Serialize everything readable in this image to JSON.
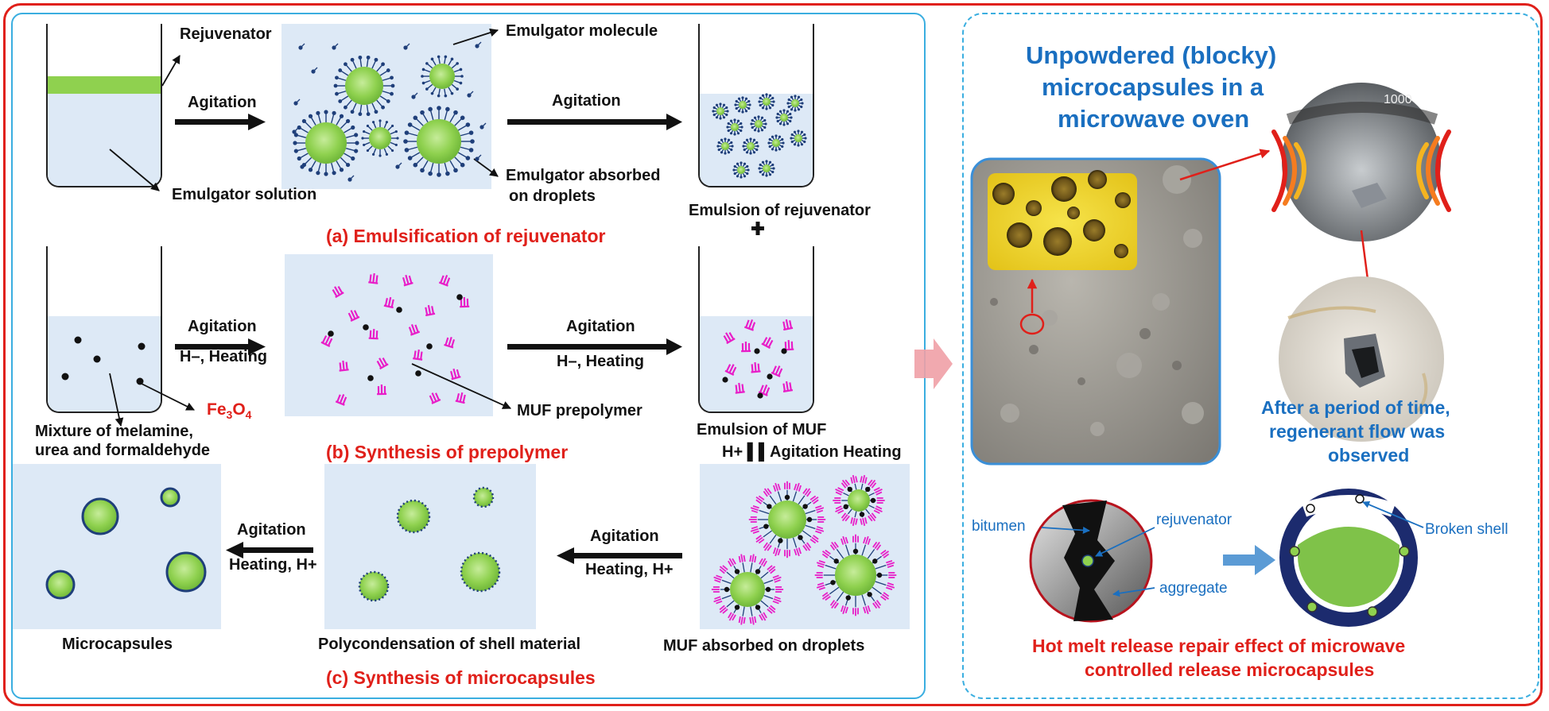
{
  "labels": {
    "rejuvenator": "Rejuvenator",
    "emulgator_molecule": "Emulgator molecule",
    "agitation_a1": "Agitation",
    "agitation_a2": "Agitation",
    "emulgator_solution": "Emulgator solution",
    "emulgator_absorbed_1": "Emulgator absorbed",
    "emulgator_absorbed_2": "on droplets",
    "emulsion_rejuvenator": "Emulsion of rejuvenator",
    "title_a": "(a) Emulsification of rejuvenator",
    "agitation_b1": "Agitation",
    "h_heating_b1": "H–, Heating",
    "agitation_b2": "Agitation",
    "h_heating_b2": "H–, Heating",
    "fe3o4": "Fe",
    "fe3o4_sub": "3",
    "fe3o4_o": "O",
    "fe3o4_sub2": "4",
    "muf_prepolymer": "MUF prepolymer",
    "mixture_1": "Mixture of melamine,",
    "mixture_2": "urea and formaldehyde",
    "title_b": "(b) Synthesis of prepolymer",
    "emulsion_muf": "Emulsion of MUF",
    "h_agitation_heating": "H+ ▌▌Agitation Heating",
    "agitation_c1": "Agitation",
    "heating_c1": "Heating, H+",
    "agitation_c2": "Agitation",
    "heating_c2": "Heating, H+",
    "microcapsules": "Microcapsules",
    "polycondensation": "Polycondensation of shell material",
    "muf_absorbed": "MUF absorbed on droplets",
    "title_c": "(c) Synthesis of microcapsules"
  },
  "right": {
    "title_1": "Unpowdered (blocky)",
    "title_2": "microcapsules in a",
    "title_3": "microwave oven",
    "beaker_mark": "1000",
    "period_1": "After a period of time,",
    "period_2": "regenerant flow was",
    "period_3": "observed",
    "bitumen": "bitumen",
    "rejuvenator": "rejuvenator",
    "aggregate": "aggregate",
    "broken_shell": "Broken shell",
    "repair_1": "Hot melt release repair effect of microwave",
    "repair_2": "controlled release microcapsules"
  },
  "colors": {
    "frame_red": "#e0201a",
    "panel_blue": "#3aaee0",
    "droplet_green": "#8fd14f",
    "shell_navy": "#1f3f7a",
    "prepolymer_magenta": "#e81ec8",
    "label_blue": "#1a6fc0"
  }
}
